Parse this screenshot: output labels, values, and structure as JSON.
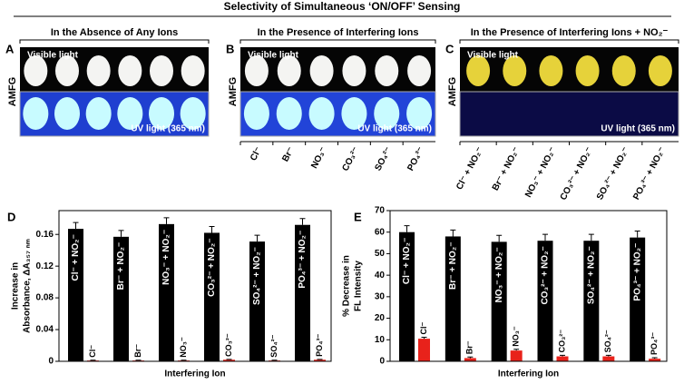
{
  "title": "Selectivity of Simultaneous ‘ON/OFF’ Sensing",
  "panels": [
    {
      "label": "A",
      "heading": "In the Absence of Any Ions",
      "side_label": "AMFG",
      "top_label": "Visible light",
      "bottom_label": "UV light (365 nm)",
      "ions": []
    },
    {
      "label": "B",
      "heading": "In the Presence of Interfering Ions",
      "side_label": "AMFG",
      "top_label": "Visible light",
      "bottom_label": "UV light (365 nm)",
      "ions": [
        "Cl⁻",
        "Br⁻",
        "NO₃⁻",
        "CO₃²⁻",
        "SO₄²⁻",
        "PO₄³⁻"
      ]
    },
    {
      "label": "C",
      "heading": "In the Presence of Interfering Ions + NO₂⁻",
      "side_label": "AMFG",
      "top_label": "Visible light",
      "bottom_label": "UV light (365 nm)",
      "ions": [
        "Cl⁻ + NO₂⁻",
        "Br⁻ + NO₂⁻",
        "NO₃⁻ + NO₂⁻",
        "CO₃²⁻ + NO₂⁻",
        "SO₄²⁻ + NO₂⁻",
        "PO₄³⁻ + NO₂⁻"
      ]
    }
  ],
  "chart_data": [
    {
      "type": "bar",
      "label": "D",
      "ylabel": [
        "Increase in",
        "Absorbance, ΔA₃₅₇ ₙₘ"
      ],
      "xlabel": "Interfering Ion",
      "ylim": [
        0,
        0.19
      ],
      "yticks": [
        0,
        0.04,
        0.08,
        0.12,
        0.16
      ],
      "series": [
        {
          "color": "#000000",
          "values": [
            0.167,
            0.157,
            0.173,
            0.162,
            0.151,
            0.172
          ],
          "errors": [
            0.008,
            0.008,
            0.008,
            0.008,
            0.008,
            0.008
          ],
          "bar_labels": [
            "Cl⁻ + NO₂⁻",
            "Br⁻ + NO₂⁻",
            "NO₃⁻ + NO₂⁻",
            "CO₃²⁻ + NO₂⁻",
            "SO₄²⁻ + NO₂⁻",
            "PO₄³⁻ + NO₂⁻"
          ]
        },
        {
          "color": "#e8221b",
          "values": [
            0.001,
            0.001,
            0.001,
            0.002,
            0.001,
            0.002
          ],
          "errors": [
            0.0005,
            0.0005,
            0.0005,
            0.0005,
            0.0005,
            0.0005
          ],
          "bar_labels": [
            "Cl⁻",
            "Br⁻",
            "NO₃⁻",
            "CO₃²⁻",
            "SO₄²⁻",
            "PO₄³⁻"
          ]
        }
      ]
    },
    {
      "type": "bar",
      "label": "E",
      "ylabel": [
        "% Decrease in",
        "FL Intensity"
      ],
      "xlabel": "Interfering Ion",
      "ylim": [
        0,
        70
      ],
      "yticks": [
        0,
        10,
        20,
        30,
        40,
        50,
        60,
        70
      ],
      "series": [
        {
          "color": "#000000",
          "values": [
            60,
            58,
            55.5,
            56,
            56,
            57.5
          ],
          "errors": [
            3,
            3,
            3,
            3,
            3,
            3
          ],
          "bar_labels": [
            "Cl⁻ + NO₂⁻",
            "Br⁻ + NO₂⁻",
            "NO₃⁻ + NO₂⁻",
            "CO₃²⁻ + NO₂⁻",
            "SO₄²⁻ + NO₂⁻",
            "PO₄³⁻ + NO₂⁻"
          ]
        },
        {
          "color": "#e8221b",
          "values": [
            10.5,
            1.5,
            5,
            2.3,
            2.3,
            1.2
          ],
          "errors": [
            0.7,
            0.5,
            0.6,
            0.5,
            0.5,
            0.5
          ],
          "bar_labels": [
            "Cl⁻",
            "Br⁻",
            "NO₃⁻",
            "CO₃²⁻",
            "SO₄²⁻",
            "PO₄³⁻"
          ]
        }
      ]
    }
  ]
}
